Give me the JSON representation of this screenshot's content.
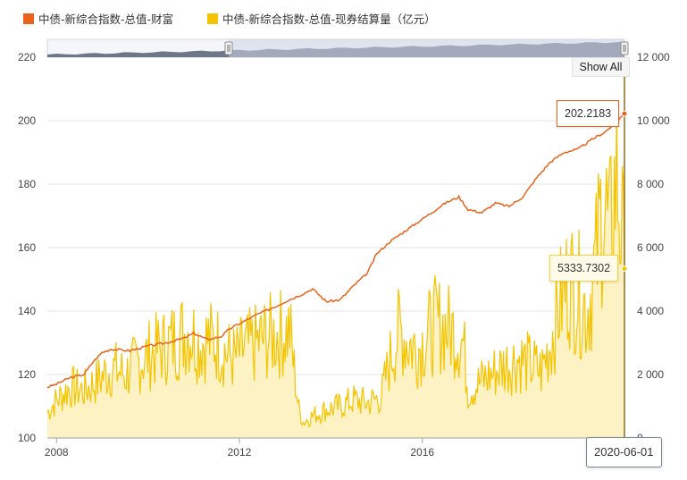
{
  "legend": {
    "series1": "中债-新综合指数-总值-财富",
    "series2": "中债-新综合指数-总值-现券结算量（亿元）"
  },
  "controls": {
    "show_all": "Show All"
  },
  "tooltips": {
    "wealth_value": "202.2183",
    "volume_value": "5333.7302",
    "date": "2020-06-01"
  },
  "colors": {
    "wealth": "#e8631b",
    "volume": "#f5c400",
    "volume_fill": "#fdf2c4",
    "navigator_fill": "#6e7787",
    "navigator_selected": "#cdd5e6"
  },
  "chart_data": {
    "type": "line",
    "x_range": [
      2007.8,
      2020.42
    ],
    "x_ticks": [
      "2008",
      "2012",
      "2016"
    ],
    "y_left": {
      "range": [
        100,
        220
      ],
      "ticks": [
        "100",
        "120",
        "140",
        "160",
        "180",
        "200",
        "220"
      ]
    },
    "y_right": {
      "range": [
        0,
        12000
      ],
      "ticks": [
        "0",
        "2 000",
        "4 000",
        "6 000",
        "8 000",
        "10 000",
        "12 000"
      ]
    },
    "series": [
      {
        "name": "中债-新综合指数-总值-财富",
        "axis": "left",
        "x": [
          2007.8,
          2008.0,
          2008.3,
          2008.6,
          2008.8,
          2009.0,
          2009.2,
          2009.6,
          2010.0,
          2010.4,
          2010.8,
          2011.0,
          2011.3,
          2011.6,
          2011.8,
          2012.0,
          2012.4,
          2012.8,
          2013.0,
          2013.4,
          2013.6,
          2013.9,
          2014.2,
          2014.5,
          2014.8,
          2015.0,
          2015.3,
          2015.6,
          2015.9,
          2016.2,
          2016.5,
          2016.8,
          2017.0,
          2017.3,
          2017.6,
          2017.9,
          2018.2,
          2018.5,
          2018.8,
          2019.1,
          2019.4,
          2019.7,
          2020.0,
          2020.2,
          2020.42
        ],
        "values": [
          116.0,
          117.0,
          119.0,
          120.0,
          124.0,
          127.0,
          128.0,
          127.5,
          129.0,
          130.0,
          131.5,
          133.0,
          131.0,
          132.0,
          134.5,
          136.0,
          139.0,
          141.5,
          143.0,
          145.5,
          147.0,
          143.0,
          143.5,
          148.0,
          152.0,
          158.0,
          162.0,
          165.0,
          168.0,
          171.0,
          174.0,
          176.0,
          172.0,
          171.0,
          174.0,
          173.0,
          176.0,
          182.0,
          187.0,
          190.0,
          191.0,
          194.0,
          196.5,
          199.0,
          202.2183
        ]
      },
      {
        "name": "中债-新综合指数-总值-现券结算量（亿元）",
        "axis": "right",
        "x": [
          2007.8,
          2008.0,
          2008.3,
          2008.6,
          2008.9,
          2009.2,
          2009.5,
          2009.8,
          2010.1,
          2010.4,
          2010.7,
          2010.9,
          2011.1,
          2011.3,
          2011.5,
          2011.7,
          2011.9,
          2012.1,
          2012.3,
          2012.5,
          2012.7,
          2012.9,
          2013.1,
          2013.3,
          2013.4,
          2013.6,
          2013.9,
          2014.2,
          2014.5,
          2014.8,
          2015.1,
          2015.3,
          2015.5,
          2015.7,
          2015.9,
          2016.1,
          2016.3,
          2016.5,
          2016.7,
          2016.9,
          2017.0,
          2017.2,
          2017.5,
          2017.8,
          2018.1,
          2018.4,
          2018.6,
          2018.8,
          2019.0,
          2019.2,
          2019.4,
          2019.6,
          2019.8,
          2019.95,
          2020.1,
          2020.25,
          2020.42
        ],
        "values": [
          800,
          1200,
          1600,
          1500,
          1800,
          2200,
          2000,
          2400,
          2700,
          2900,
          3200,
          3400,
          3000,
          3100,
          3000,
          2700,
          2500,
          2800,
          2900,
          3100,
          3200,
          3300,
          3400,
          900,
          500,
          700,
          900,
          1000,
          1200,
          1100,
          1300,
          2500,
          3400,
          3000,
          2800,
          3200,
          3600,
          3500,
          3300,
          3000,
          1500,
          1700,
          2000,
          2300,
          2500,
          2300,
          2100,
          3000,
          4200,
          5000,
          4600,
          4000,
          5500,
          7600,
          6200,
          8400,
          5333.7302
        ]
      }
    ]
  }
}
